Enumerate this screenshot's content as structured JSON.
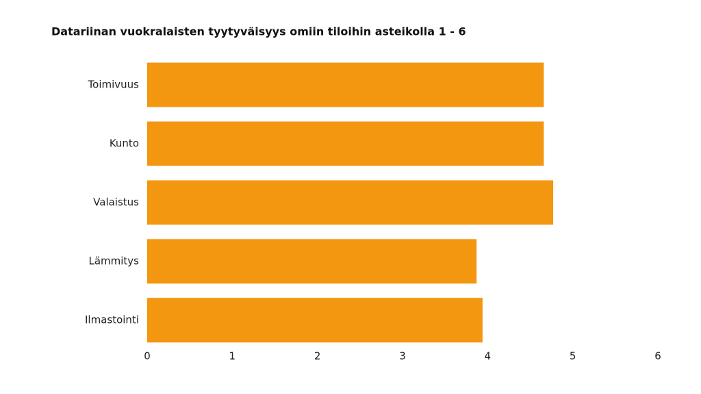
{
  "chart_data": {
    "type": "barh",
    "title": "Datariinan vuokralaisten tyytyväisyys omiin tiloihin asteikolla 1 - 6",
    "categories": [
      "Toimivuus",
      "Kunto",
      "Valaistus",
      "Lämmitys",
      "Ilmastointi"
    ],
    "values": [
      4.66,
      4.66,
      4.77,
      3.87,
      3.94
    ],
    "color": "#f39610",
    "xlim": [
      0,
      6
    ],
    "xticks": [
      0,
      1,
      2,
      3,
      4,
      5,
      6
    ],
    "grid": false
  }
}
